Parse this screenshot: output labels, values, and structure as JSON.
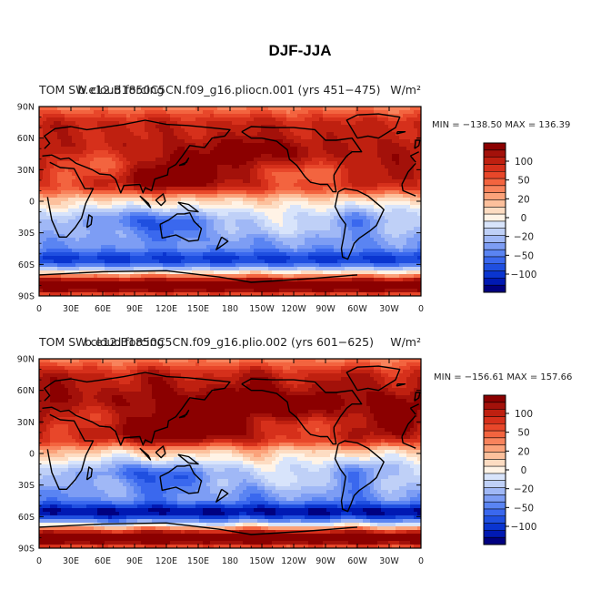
{
  "chart_data": {
    "type": "heatmap",
    "title": "DJF-JJA",
    "units": "W/m²",
    "colorbar": {
      "levels": [
        -120,
        -110,
        -100,
        -90,
        -80,
        -70,
        -60,
        -50,
        -40,
        -30,
        -20,
        -10,
        0,
        10,
        20,
        30,
        40,
        50,
        60,
        70,
        80,
        90,
        100,
        110,
        120
      ],
      "tick_labels": [
        "100",
        "50",
        "20",
        "0",
        "−20",
        "−50",
        "−100"
      ],
      "colors": [
        "#000080",
        "#0019b3",
        "#0a35d0",
        "#1f4fe0",
        "#3a68ee",
        "#5a84f2",
        "#7d9df4",
        "#a0b8f6",
        "#bfd0f7",
        "#d8e4fb",
        "#fff3e6",
        "#fddcc2",
        "#fcc09c",
        "#fba27a",
        "#f8835c",
        "#f3643f",
        "#e8472a",
        "#d6301b",
        "#bf2010",
        "#a3110a",
        "#8b0000"
      ]
    },
    "x_ticks": [
      "0",
      "30E",
      "60E",
      "90E",
      "120E",
      "150E",
      "180",
      "150W",
      "120W",
      "90W",
      "60W",
      "30W",
      "0"
    ],
    "y_ticks": [
      "90N",
      "60N",
      "30N",
      "0",
      "30S",
      "60S",
      "90S"
    ],
    "lat_range": [
      -90,
      90
    ],
    "lon_range": [
      0,
      360
    ],
    "panels": [
      {
        "left_title": "TOM SW cloud forcing",
        "center_title": "b.e12.B1850C5CN.f09_g16.pliocn.001 (yrs 451−475)",
        "units": "W/m²",
        "minmax_text": "MIN = −138.50  MAX = 136.39",
        "min": -138.5,
        "max": 136.39
      },
      {
        "left_title": "TOM SW cloud forcing",
        "center_title": "b.e12.B1850C5CN.f09_g16.plio.002 (yrs 601−625)",
        "units": "W/m²",
        "minmax_text": "MIN = −156.61  MAX = 157.66",
        "min": -156.61,
        "max": 157.66
      }
    ]
  }
}
